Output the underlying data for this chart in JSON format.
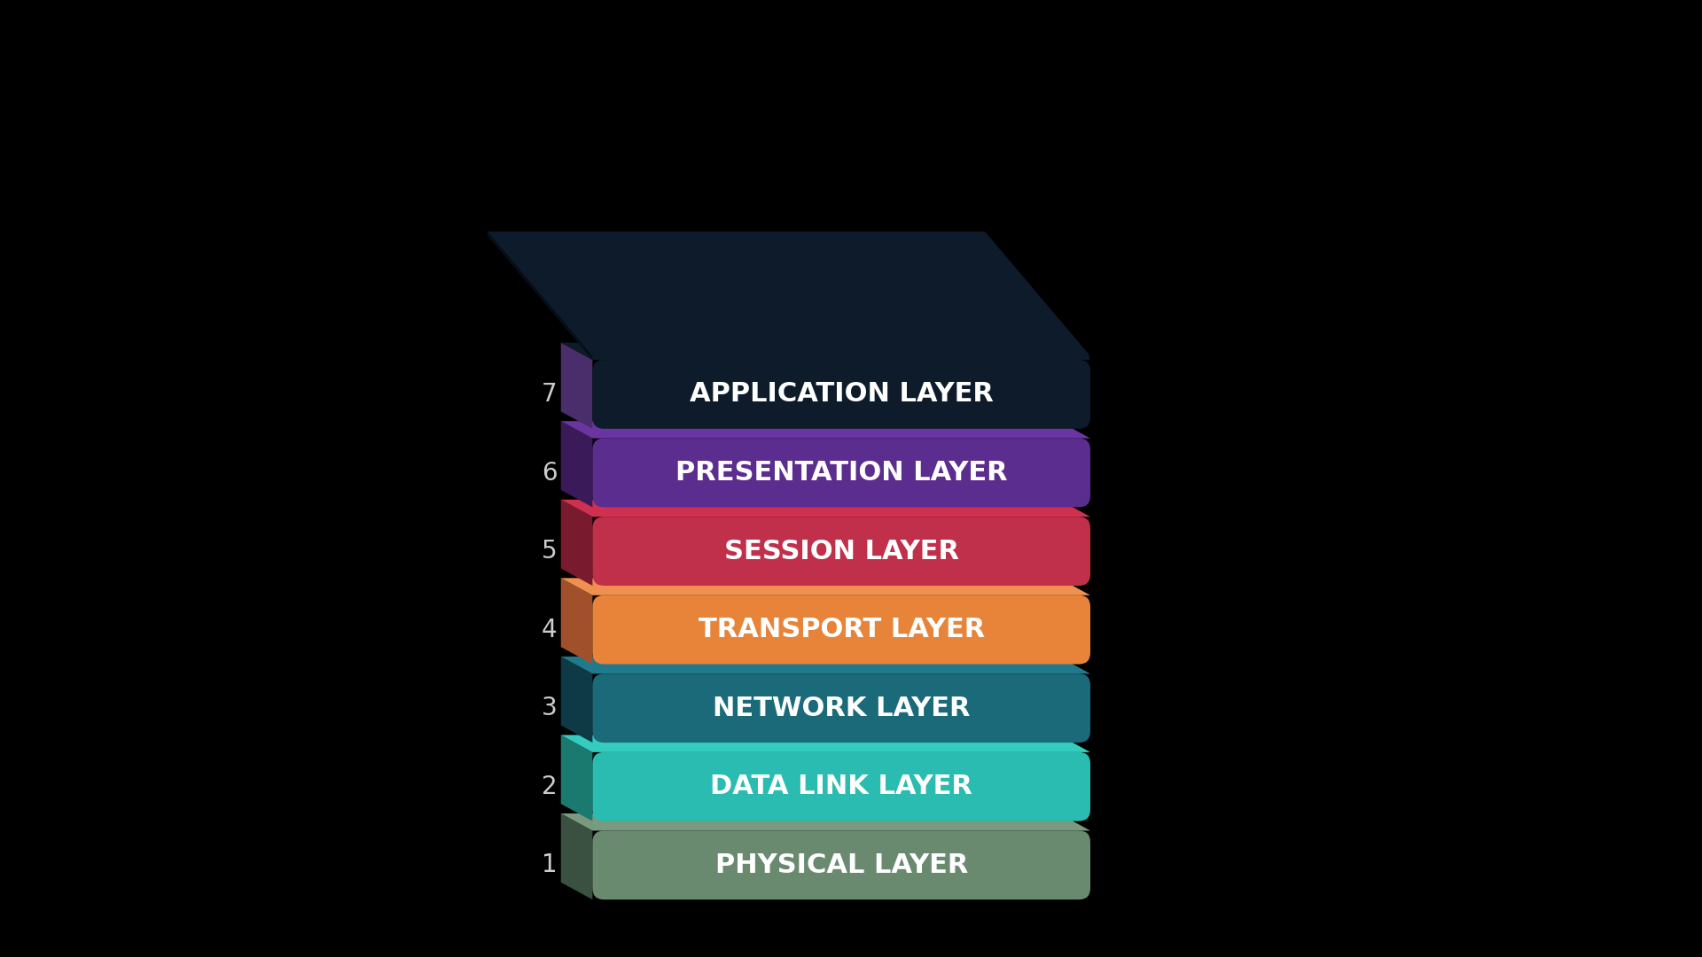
{
  "background_color": "#000000",
  "layers": [
    {
      "number": 7,
      "label": "APPLICATION LAYER",
      "face_color": "#0d1b2a",
      "side_color": "#4a2d6b",
      "top_color": "#0d1b2a"
    },
    {
      "number": 6,
      "label": "PRESENTATION LAYER",
      "face_color": "#5b2d8e",
      "side_color": "#3b1a5a",
      "top_color": "#6a35a0"
    },
    {
      "number": 5,
      "label": "SESSION LAYER",
      "face_color": "#c0304a",
      "side_color": "#7a1a2e",
      "top_color": "#d03050"
    },
    {
      "number": 4,
      "label": "TRANSPORT LAYER",
      "face_color": "#e8843a",
      "side_color": "#a0502a",
      "top_color": "#f09050"
    },
    {
      "number": 3,
      "label": "NETWORK LAYER",
      "face_color": "#1a6a7a",
      "side_color": "#0d3a45",
      "top_color": "#207a8c"
    },
    {
      "number": 2,
      "label": "DATA LINK LAYER",
      "face_color": "#2abcb0",
      "side_color": "#1a7a70",
      "top_color": "#35ccc0"
    },
    {
      "number": 1,
      "label": "PHYSICAL LAYER",
      "face_color": "#6a8a70",
      "side_color": "#3a5040",
      "top_color": "#7a9a80"
    }
  ],
  "text_color": "#ffffff",
  "number_color": "#cccccc",
  "label_fontsize": 22,
  "number_fontsize": 20
}
